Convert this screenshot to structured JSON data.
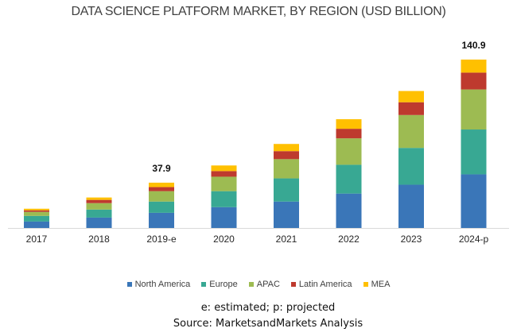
{
  "chart_data": {
    "type": "bar",
    "stacked": true,
    "title": "DATA SCIENCE PLATFORM MARKET, BY REGION (USD BILLION)",
    "xlabel": "",
    "ylabel": "",
    "ylim": [
      0,
      150
    ],
    "grid": false,
    "legend_position": "bottom",
    "categories": [
      "2017",
      "2018",
      "2019-e",
      "2020",
      "2021",
      "2022",
      "2023",
      "2024-p"
    ],
    "series": [
      {
        "name": "North America",
        "color": "#3A76B8",
        "values": [
          5.4,
          8.7,
          12.7,
          17.4,
          22.1,
          28.8,
          36.2,
          44.9
        ]
      },
      {
        "name": "Europe",
        "color": "#38A893",
        "values": [
          4.7,
          6.7,
          9.4,
          13.4,
          19.4,
          24.1,
          30.8,
          37.5
        ]
      },
      {
        "name": "APAC",
        "color": "#9DBB52",
        "values": [
          3.4,
          5.4,
          8.7,
          12.1,
          16.1,
          22.1,
          27.5,
          33.5
        ]
      },
      {
        "name": "Latin America",
        "color": "#BE3A2E",
        "values": [
          1.3,
          2.7,
          3.4,
          4.7,
          6.7,
          8.0,
          10.7,
          14.1
        ]
      },
      {
        "name": "MEA",
        "color": "#FFC000",
        "values": [
          1.3,
          2.0,
          3.7,
          4.7,
          6.0,
          8.0,
          9.4,
          10.9
        ]
      }
    ],
    "annotations": [
      {
        "category": "2019-e",
        "label": "37.9"
      },
      {
        "category": "2024-p",
        "label": "140.9"
      }
    ]
  },
  "notes": {
    "line1": "e: estimated; p: projected",
    "line2": "Source: MarketsandMarkets Analysis"
  }
}
